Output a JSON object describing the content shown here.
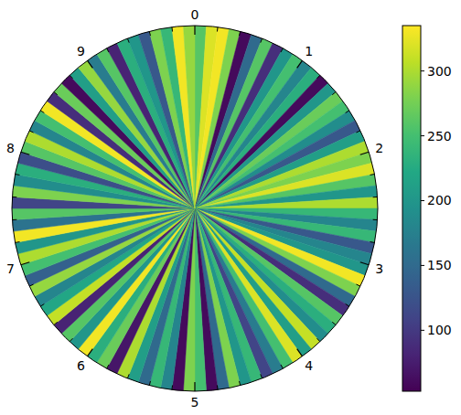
{
  "chart_data": {
    "type": "polar",
    "xlim": [
      0,
      10
    ],
    "xticks": [
      0,
      1,
      2,
      3,
      4,
      5,
      6,
      7,
      8,
      9
    ],
    "minor_xticks": [
      0.2,
      0.4,
      0.6,
      0.8,
      1.2,
      1.4,
      1.6,
      1.8,
      2.2,
      2.4,
      2.6,
      2.8,
      3.2,
      3.4,
      3.6,
      3.8,
      4.2,
      4.4,
      4.6,
      4.8,
      5.2,
      5.4,
      5.6,
      5.8,
      6.2,
      6.4,
      6.6,
      6.8,
      7.2,
      7.4,
      7.6,
      7.8,
      8.2,
      8.4,
      8.6,
      8.8,
      9.2,
      9.4,
      9.6,
      9.8
    ],
    "values": [
      260,
      320,
      330,
      280,
      60,
      150,
      260,
      90,
      200,
      250,
      180,
      230,
      60,
      200,
      270,
      250,
      190,
      130,
      210,
      300,
      280,
      320,
      260,
      200,
      300,
      240,
      180,
      240,
      130,
      180,
      200,
      330,
      280,
      150,
      90,
      260,
      230,
      190,
      310,
      210,
      320,
      250,
      170,
      110,
      240,
      200,
      280,
      150,
      60,
      250,
      280,
      60,
      180,
      240,
      150,
      210,
      300,
      70,
      270,
      230,
      330,
      200,
      260,
      80,
      310,
      220,
      180,
      290,
      140,
      250,
      300,
      200,
      330,
      160,
      260,
      110,
      280,
      190,
      230,
      120,
      260,
      300,
      180,
      250,
      330,
      90,
      270,
      60,
      210,
      290,
      170,
      260,
      80,
      230,
      200,
      130,
      280,
      240,
      330,
      290
    ],
    "colorbar_range": [
      53,
      335
    ],
    "colorbar_ticks": [
      100,
      150,
      200,
      250,
      300
    ]
  }
}
